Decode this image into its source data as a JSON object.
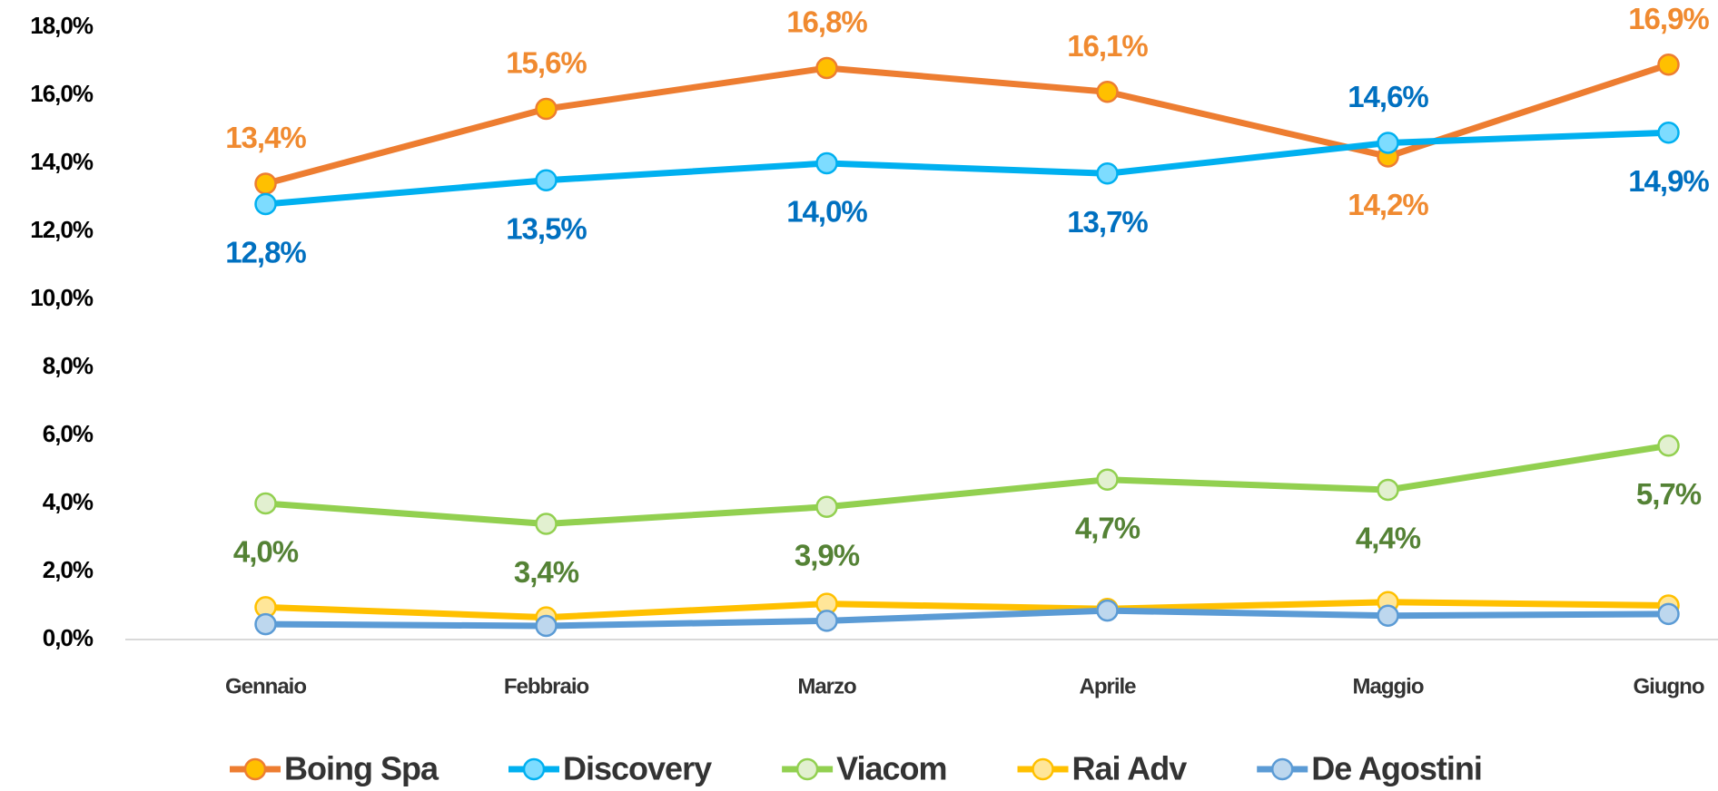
{
  "chart_data": {
    "type": "line",
    "categories": [
      "Gennaio",
      "Febbraio",
      "Marzo",
      "Aprile",
      "Maggio",
      "Giugno"
    ],
    "series": [
      {
        "name": "Boing Spa",
        "color": "#ed7d31",
        "marker_color": "#ffc000",
        "label_color": "#f08a30",
        "values": [
          13.4,
          15.6,
          16.8,
          16.1,
          14.2,
          16.9
        ],
        "value_labels": [
          "13,4%",
          "15,6%",
          "16,8%",
          "16,1%",
          "14,2%",
          "16,9%"
        ]
      },
      {
        "name": "Discovery",
        "color": "#00b0f0",
        "marker_color": "#7ddcff",
        "label_color": "#0070c0",
        "values": [
          12.8,
          13.5,
          14.0,
          13.7,
          14.6,
          14.9
        ],
        "value_labels": [
          "12,8%",
          "13,5%",
          "14,0%",
          "13,7%",
          "14,6%",
          "14,9%"
        ]
      },
      {
        "name": "Viacom",
        "color": "#92d050",
        "marker_color": "#e2f0d0",
        "label_color": "#548235",
        "values": [
          4.0,
          3.4,
          3.9,
          4.7,
          4.4,
          5.7
        ],
        "value_labels": [
          "4,0%",
          "3,4%",
          "3,9%",
          "4,7%",
          "4,4%",
          "5,7%"
        ]
      },
      {
        "name": "Rai Adv",
        "color": "#ffc000",
        "marker_color": "#ffe699",
        "values": [
          0.95,
          0.65,
          1.05,
          0.9,
          1.1,
          1.0
        ]
      },
      {
        "name": "De Agostini",
        "color": "#5b9bd5",
        "marker_color": "#bdd7ee",
        "values": [
          0.45,
          0.4,
          0.55,
          0.85,
          0.7,
          0.75
        ]
      }
    ],
    "ylim": [
      0,
      18
    ],
    "yticks": [
      {
        "value": 0,
        "label": "0,0%"
      },
      {
        "value": 2,
        "label": "2,0%"
      },
      {
        "value": 4,
        "label": "4,0%"
      },
      {
        "value": 6,
        "label": "6,0%"
      },
      {
        "value": 8,
        "label": "8,0%"
      },
      {
        "value": 10,
        "label": "10,0%"
      },
      {
        "value": 12,
        "label": "12,0%"
      },
      {
        "value": 14,
        "label": "14,0%"
      },
      {
        "value": 16,
        "label": "16,0%"
      },
      {
        "value": 18,
        "label": "18,0%"
      }
    ],
    "grid": false,
    "legend": "bottom"
  }
}
